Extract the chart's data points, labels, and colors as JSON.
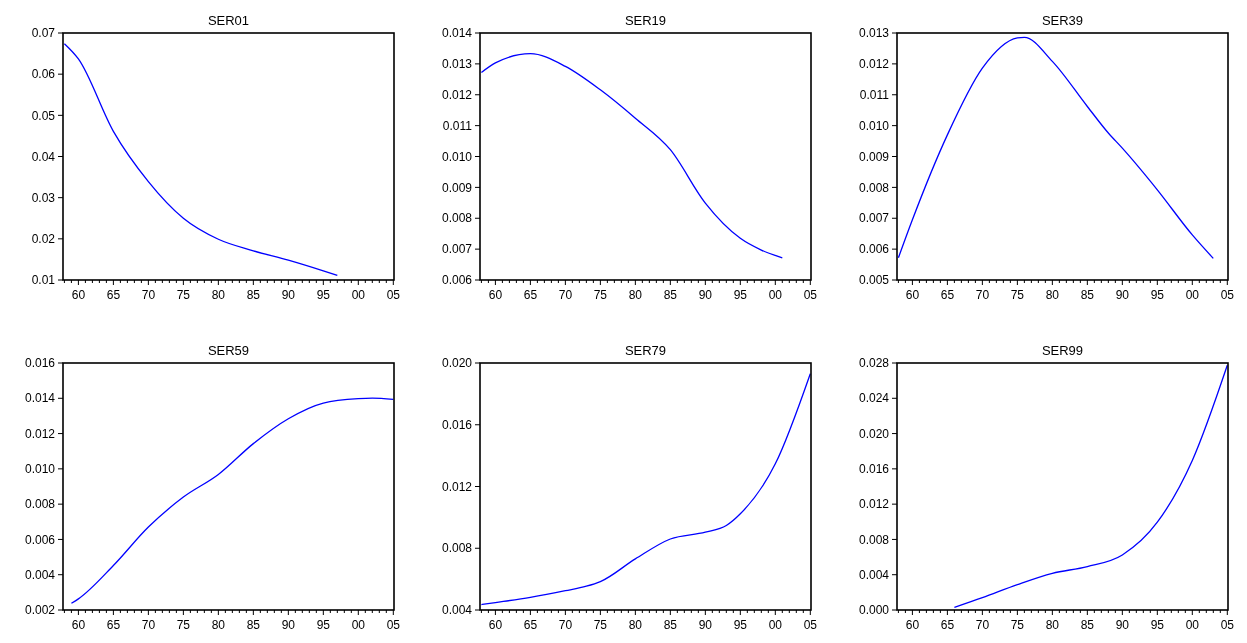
{
  "chart_data": [
    {
      "type": "line",
      "title": "SER01",
      "color": "#0000ff",
      "x": [
        1958,
        1960,
        1965,
        1970,
        1975,
        1980,
        1985,
        1990,
        1995,
        1997
      ],
      "values": [
        0.0674,
        0.0637,
        0.0461,
        0.0339,
        0.025,
        0.0199,
        0.0171,
        0.0148,
        0.0122,
        0.0111
      ],
      "xlim": [
        1957.8,
        2005.1
      ],
      "ylim": [
        0.01,
        0.07
      ],
      "yticks": [
        0.01,
        0.02,
        0.03,
        0.04,
        0.05,
        0.06,
        0.07
      ],
      "xticks": [
        {
          "value": 1958,
          "label": null
        },
        {
          "value": 1959,
          "label": null
        },
        {
          "value": 1960,
          "label": "60"
        },
        {
          "value": 1961,
          "label": null
        },
        {
          "value": 1962,
          "label": null
        },
        {
          "value": 1963,
          "label": null
        },
        {
          "value": 1964,
          "label": null
        },
        {
          "value": 1965,
          "label": "65"
        },
        {
          "value": 1966,
          "label": null
        },
        {
          "value": 1967,
          "label": null
        },
        {
          "value": 1968,
          "label": null
        },
        {
          "value": 1969,
          "label": null
        },
        {
          "value": 1970,
          "label": "70"
        },
        {
          "value": 1971,
          "label": null
        },
        {
          "value": 1972,
          "label": null
        },
        {
          "value": 1973,
          "label": null
        },
        {
          "value": 1974,
          "label": null
        },
        {
          "value": 1975,
          "label": "75"
        },
        {
          "value": 1976,
          "label": null
        },
        {
          "value": 1977,
          "label": null
        },
        {
          "value": 1978,
          "label": null
        },
        {
          "value": 1979,
          "label": null
        },
        {
          "value": 1980,
          "label": "80"
        },
        {
          "value": 1981,
          "label": null
        },
        {
          "value": 1982,
          "label": null
        },
        {
          "value": 1983,
          "label": null
        },
        {
          "value": 1984,
          "label": null
        },
        {
          "value": 1985,
          "label": "85"
        },
        {
          "value": 1986,
          "label": null
        },
        {
          "value": 1987,
          "label": null
        },
        {
          "value": 1988,
          "label": null
        },
        {
          "value": 1989,
          "label": null
        },
        {
          "value": 1990,
          "label": "90"
        },
        {
          "value": 1991,
          "label": null
        },
        {
          "value": 1992,
          "label": null
        },
        {
          "value": 1993,
          "label": null
        },
        {
          "value": 1994,
          "label": null
        },
        {
          "value": 1995,
          "label": "95"
        },
        {
          "value": 1996,
          "label": null
        },
        {
          "value": 1997,
          "label": null
        },
        {
          "value": 1998,
          "label": null
        },
        {
          "value": 1999,
          "label": null
        },
        {
          "value": 2000,
          "label": "00"
        },
        {
          "value": 2001,
          "label": null
        },
        {
          "value": 2002,
          "label": null
        },
        {
          "value": 2003,
          "label": null
        },
        {
          "value": 2004,
          "label": null
        },
        {
          "value": 2005,
          "label": "05"
        }
      ]
    },
    {
      "type": "line",
      "title": "SER19",
      "color": "#0000ff",
      "x": [
        1958,
        1960,
        1965,
        1970,
        1975,
        1980,
        1985,
        1990,
        1995,
        1998,
        2001
      ],
      "values": [
        0.01272,
        0.01303,
        0.01333,
        0.01292,
        0.01216,
        0.01124,
        0.01022,
        0.00849,
        0.00735,
        0.00697,
        0.00672
      ],
      "xlim": [
        1957.8,
        2005.1
      ],
      "ylim": [
        0.006,
        0.014
      ],
      "yticks": [
        {
          "value": 0.006,
          "label": "0.006"
        },
        {
          "value": 0.007,
          "label": "0.007"
        },
        {
          "value": 0.008,
          "label": "0.008"
        },
        {
          "value": 0.009,
          "label": "0.009"
        },
        {
          "value": 0.01,
          "label": "0.010"
        },
        {
          "value": 0.011,
          "label": "0.011"
        },
        {
          "value": 0.012,
          "label": "0.012"
        },
        {
          "value": 0.013,
          "label": "0.013"
        },
        {
          "value": 0.014,
          "label": "0.014"
        }
      ],
      "xticks": [
        {
          "value": 1958,
          "label": null
        },
        {
          "value": 1959,
          "label": null
        },
        {
          "value": 1960,
          "label": "60"
        },
        {
          "value": 1961,
          "label": null
        },
        {
          "value": 1962,
          "label": null
        },
        {
          "value": 1963,
          "label": null
        },
        {
          "value": 1964,
          "label": null
        },
        {
          "value": 1965,
          "label": "65"
        },
        {
          "value": 1966,
          "label": null
        },
        {
          "value": 1967,
          "label": null
        },
        {
          "value": 1968,
          "label": null
        },
        {
          "value": 1969,
          "label": null
        },
        {
          "value": 1970,
          "label": "70"
        },
        {
          "value": 1971,
          "label": null
        },
        {
          "value": 1972,
          "label": null
        },
        {
          "value": 1973,
          "label": null
        },
        {
          "value": 1974,
          "label": null
        },
        {
          "value": 1975,
          "label": "75"
        },
        {
          "value": 1976,
          "label": null
        },
        {
          "value": 1977,
          "label": null
        },
        {
          "value": 1978,
          "label": null
        },
        {
          "value": 1979,
          "label": null
        },
        {
          "value": 1980,
          "label": "80"
        },
        {
          "value": 1981,
          "label": null
        },
        {
          "value": 1982,
          "label": null
        },
        {
          "value": 1983,
          "label": null
        },
        {
          "value": 1984,
          "label": null
        },
        {
          "value": 1985,
          "label": "85"
        },
        {
          "value": 1986,
          "label": null
        },
        {
          "value": 1987,
          "label": null
        },
        {
          "value": 1988,
          "label": null
        },
        {
          "value": 1989,
          "label": null
        },
        {
          "value": 1990,
          "label": "90"
        },
        {
          "value": 1991,
          "label": null
        },
        {
          "value": 1992,
          "label": null
        },
        {
          "value": 1993,
          "label": null
        },
        {
          "value": 1994,
          "label": null
        },
        {
          "value": 1995,
          "label": "95"
        },
        {
          "value": 1996,
          "label": null
        },
        {
          "value": 1997,
          "label": null
        },
        {
          "value": 1998,
          "label": null
        },
        {
          "value": 1999,
          "label": null
        },
        {
          "value": 2000,
          "label": "00"
        },
        {
          "value": 2001,
          "label": null
        },
        {
          "value": 2002,
          "label": null
        },
        {
          "value": 2003,
          "label": null
        },
        {
          "value": 2004,
          "label": null
        },
        {
          "value": 2005,
          "label": "05"
        }
      ]
    },
    {
      "type": "line",
      "title": "SER39",
      "color": "#0000ff",
      "x": [
        1958,
        1960,
        1965,
        1970,
        1975,
        1976,
        1980,
        1985,
        1988,
        1990,
        1995,
        2000,
        2003
      ],
      "values": [
        0.00572,
        0.00695,
        0.0097,
        0.01186,
        0.01284,
        0.01286,
        0.01208,
        0.01062,
        0.00976,
        0.00927,
        0.00792,
        0.00646,
        0.0057
      ],
      "xlim": [
        1957.8,
        2005.1
      ],
      "ylim": [
        0.005,
        0.013
      ],
      "yticks": [
        {
          "value": 0.005,
          "label": "0.005"
        },
        {
          "value": 0.006,
          "label": "0.006"
        },
        {
          "value": 0.007,
          "label": "0.007"
        },
        {
          "value": 0.008,
          "label": "0.008"
        },
        {
          "value": 0.009,
          "label": "0.009"
        },
        {
          "value": 0.01,
          "label": "0.010"
        },
        {
          "value": 0.011,
          "label": "0.011"
        },
        {
          "value": 0.012,
          "label": "0.012"
        },
        {
          "value": 0.013,
          "label": "0.013"
        }
      ],
      "xticks": [
        {
          "value": 1958,
          "label": null
        },
        {
          "value": 1959,
          "label": null
        },
        {
          "value": 1960,
          "label": "60"
        },
        {
          "value": 1961,
          "label": null
        },
        {
          "value": 1962,
          "label": null
        },
        {
          "value": 1963,
          "label": null
        },
        {
          "value": 1964,
          "label": null
        },
        {
          "value": 1965,
          "label": "65"
        },
        {
          "value": 1966,
          "label": null
        },
        {
          "value": 1967,
          "label": null
        },
        {
          "value": 1968,
          "label": null
        },
        {
          "value": 1969,
          "label": null
        },
        {
          "value": 1970,
          "label": "70"
        },
        {
          "value": 1971,
          "label": null
        },
        {
          "value": 1972,
          "label": null
        },
        {
          "value": 1973,
          "label": null
        },
        {
          "value": 1974,
          "label": null
        },
        {
          "value": 1975,
          "label": "75"
        },
        {
          "value": 1976,
          "label": null
        },
        {
          "value": 1977,
          "label": null
        },
        {
          "value": 1978,
          "label": null
        },
        {
          "value": 1979,
          "label": null
        },
        {
          "value": 1980,
          "label": "80"
        },
        {
          "value": 1981,
          "label": null
        },
        {
          "value": 1982,
          "label": null
        },
        {
          "value": 1983,
          "label": null
        },
        {
          "value": 1984,
          "label": null
        },
        {
          "value": 1985,
          "label": "85"
        },
        {
          "value": 1986,
          "label": null
        },
        {
          "value": 1987,
          "label": null
        },
        {
          "value": 1988,
          "label": null
        },
        {
          "value": 1989,
          "label": null
        },
        {
          "value": 1990,
          "label": "90"
        },
        {
          "value": 1991,
          "label": null
        },
        {
          "value": 1992,
          "label": null
        },
        {
          "value": 1993,
          "label": null
        },
        {
          "value": 1994,
          "label": null
        },
        {
          "value": 1995,
          "label": "95"
        },
        {
          "value": 1996,
          "label": null
        },
        {
          "value": 1997,
          "label": null
        },
        {
          "value": 1998,
          "label": null
        },
        {
          "value": 1999,
          "label": null
        },
        {
          "value": 2000,
          "label": "00"
        },
        {
          "value": 2001,
          "label": null
        },
        {
          "value": 2002,
          "label": null
        },
        {
          "value": 2003,
          "label": null
        },
        {
          "value": 2004,
          "label": null
        },
        {
          "value": 2005,
          "label": "05"
        }
      ]
    },
    {
      "type": "line",
      "title": "SER59",
      "color": "#0000ff",
      "x": [
        1959,
        1960,
        1965,
        1970,
        1975,
        1980,
        1985,
        1990,
        1995,
        2000,
        2002,
        2005
      ],
      "values": [
        0.00238,
        0.00263,
        0.00452,
        0.0067,
        0.0084,
        0.00968,
        0.01143,
        0.01284,
        0.01373,
        0.01398,
        0.01401,
        0.01394
      ],
      "xlim": [
        1957.8,
        2005.1
      ],
      "ylim": [
        0.002,
        0.016
      ],
      "yticks": [
        {
          "value": 0.002,
          "label": "0.002"
        },
        {
          "value": 0.004,
          "label": "0.004"
        },
        {
          "value": 0.006,
          "label": "0.006"
        },
        {
          "value": 0.008,
          "label": "0.008"
        },
        {
          "value": 0.01,
          "label": "0.010"
        },
        {
          "value": 0.012,
          "label": "0.012"
        },
        {
          "value": 0.014,
          "label": "0.014"
        },
        {
          "value": 0.016,
          "label": "0.016"
        }
      ],
      "xticks": [
        {
          "value": 1958,
          "label": null
        },
        {
          "value": 1959,
          "label": null
        },
        {
          "value": 1960,
          "label": "60"
        },
        {
          "value": 1961,
          "label": null
        },
        {
          "value": 1962,
          "label": null
        },
        {
          "value": 1963,
          "label": null
        },
        {
          "value": 1964,
          "label": null
        },
        {
          "value": 1965,
          "label": "65"
        },
        {
          "value": 1966,
          "label": null
        },
        {
          "value": 1967,
          "label": null
        },
        {
          "value": 1968,
          "label": null
        },
        {
          "value": 1969,
          "label": null
        },
        {
          "value": 1970,
          "label": "70"
        },
        {
          "value": 1971,
          "label": null
        },
        {
          "value": 1972,
          "label": null
        },
        {
          "value": 1973,
          "label": null
        },
        {
          "value": 1974,
          "label": null
        },
        {
          "value": 1975,
          "label": "75"
        },
        {
          "value": 1976,
          "label": null
        },
        {
          "value": 1977,
          "label": null
        },
        {
          "value": 1978,
          "label": null
        },
        {
          "value": 1979,
          "label": null
        },
        {
          "value": 1980,
          "label": "80"
        },
        {
          "value": 1981,
          "label": null
        },
        {
          "value": 1982,
          "label": null
        },
        {
          "value": 1983,
          "label": null
        },
        {
          "value": 1984,
          "label": null
        },
        {
          "value": 1985,
          "label": "85"
        },
        {
          "value": 1986,
          "label": null
        },
        {
          "value": 1987,
          "label": null
        },
        {
          "value": 1988,
          "label": null
        },
        {
          "value": 1989,
          "label": null
        },
        {
          "value": 1990,
          "label": "90"
        },
        {
          "value": 1991,
          "label": null
        },
        {
          "value": 1992,
          "label": null
        },
        {
          "value": 1993,
          "label": null
        },
        {
          "value": 1994,
          "label": null
        },
        {
          "value": 1995,
          "label": "95"
        },
        {
          "value": 1996,
          "label": null
        },
        {
          "value": 1997,
          "label": null
        },
        {
          "value": 1998,
          "label": null
        },
        {
          "value": 1999,
          "label": null
        },
        {
          "value": 2000,
          "label": "00"
        },
        {
          "value": 2001,
          "label": null
        },
        {
          "value": 2002,
          "label": null
        },
        {
          "value": 2003,
          "label": null
        },
        {
          "value": 2004,
          "label": null
        },
        {
          "value": 2005,
          "label": "05"
        }
      ]
    },
    {
      "type": "line",
      "title": "SER79",
      "color": "#0000ff",
      "x": [
        1958,
        1960,
        1965,
        1970,
        1973,
        1975,
        1980,
        1985,
        1990,
        1993,
        1995,
        2000,
        2005
      ],
      "values": [
        0.00435,
        0.00448,
        0.00482,
        0.00525,
        0.00554,
        0.00584,
        0.00731,
        0.0086,
        0.00904,
        0.00947,
        0.01023,
        0.01347,
        0.01931
      ],
      "xlim": [
        1957.8,
        2005.1
      ],
      "ylim": [
        0.004,
        0.02
      ],
      "yticks": [
        {
          "value": 0.004,
          "label": "0.004"
        },
        {
          "value": 0.008,
          "label": "0.008"
        },
        {
          "value": 0.012,
          "label": "0.012"
        },
        {
          "value": 0.016,
          "label": "0.016"
        },
        {
          "value": 0.02,
          "label": "0.020"
        }
      ],
      "xticks": [
        {
          "value": 1958,
          "label": null
        },
        {
          "value": 1959,
          "label": null
        },
        {
          "value": 1960,
          "label": "60"
        },
        {
          "value": 1961,
          "label": null
        },
        {
          "value": 1962,
          "label": null
        },
        {
          "value": 1963,
          "label": null
        },
        {
          "value": 1964,
          "label": null
        },
        {
          "value": 1965,
          "label": "65"
        },
        {
          "value": 1966,
          "label": null
        },
        {
          "value": 1967,
          "label": null
        },
        {
          "value": 1968,
          "label": null
        },
        {
          "value": 1969,
          "label": null
        },
        {
          "value": 1970,
          "label": "70"
        },
        {
          "value": 1971,
          "label": null
        },
        {
          "value": 1972,
          "label": null
        },
        {
          "value": 1973,
          "label": null
        },
        {
          "value": 1974,
          "label": null
        },
        {
          "value": 1975,
          "label": "75"
        },
        {
          "value": 1976,
          "label": null
        },
        {
          "value": 1977,
          "label": null
        },
        {
          "value": 1978,
          "label": null
        },
        {
          "value": 1979,
          "label": null
        },
        {
          "value": 1980,
          "label": "80"
        },
        {
          "value": 1981,
          "label": null
        },
        {
          "value": 1982,
          "label": null
        },
        {
          "value": 1983,
          "label": null
        },
        {
          "value": 1984,
          "label": null
        },
        {
          "value": 1985,
          "label": "85"
        },
        {
          "value": 1986,
          "label": null
        },
        {
          "value": 1987,
          "label": null
        },
        {
          "value": 1988,
          "label": null
        },
        {
          "value": 1989,
          "label": null
        },
        {
          "value": 1990,
          "label": "90"
        },
        {
          "value": 1991,
          "label": null
        },
        {
          "value": 1992,
          "label": null
        },
        {
          "value": 1993,
          "label": null
        },
        {
          "value": 1994,
          "label": null
        },
        {
          "value": 1995,
          "label": "95"
        },
        {
          "value": 1996,
          "label": null
        },
        {
          "value": 1997,
          "label": null
        },
        {
          "value": 1998,
          "label": null
        },
        {
          "value": 1999,
          "label": null
        },
        {
          "value": 2000,
          "label": "00"
        },
        {
          "value": 2001,
          "label": null
        },
        {
          "value": 2002,
          "label": null
        },
        {
          "value": 2003,
          "label": null
        },
        {
          "value": 2004,
          "label": null
        },
        {
          "value": 2005,
          "label": "05"
        }
      ]
    },
    {
      "type": "line",
      "title": "SER99",
      "color": "#0000ff",
      "x": [
        1966,
        1970,
        1975,
        1980,
        1985,
        1990,
        1995,
        2000,
        2005
      ],
      "values": [
        0.0003,
        0.0014,
        0.00288,
        0.00416,
        0.00492,
        0.00624,
        0.00995,
        0.01695,
        0.02774
      ],
      "xlim": [
        1957.8,
        2005.1
      ],
      "ylim": [
        0.0,
        0.028
      ],
      "yticks": [
        {
          "value": 0,
          "label": "0.000"
        },
        {
          "value": 0.004,
          "label": "0.004"
        },
        {
          "value": 0.008,
          "label": "0.008"
        },
        {
          "value": 0.012,
          "label": "0.012"
        },
        {
          "value": 0.016,
          "label": "0.016"
        },
        {
          "value": 0.02,
          "label": "0.020"
        },
        {
          "value": 0.024,
          "label": "0.024"
        },
        {
          "value": 0.028,
          "label": "0.028"
        }
      ],
      "xticks": [
        {
          "value": 1958,
          "label": null
        },
        {
          "value": 1959,
          "label": null
        },
        {
          "value": 1960,
          "label": "60"
        },
        {
          "value": 1961,
          "label": null
        },
        {
          "value": 1962,
          "label": null
        },
        {
          "value": 1963,
          "label": null
        },
        {
          "value": 1964,
          "label": null
        },
        {
          "value": 1965,
          "label": "65"
        },
        {
          "value": 1966,
          "label": null
        },
        {
          "value": 1967,
          "label": null
        },
        {
          "value": 1968,
          "label": null
        },
        {
          "value": 1969,
          "label": null
        },
        {
          "value": 1970,
          "label": "70"
        },
        {
          "value": 1971,
          "label": null
        },
        {
          "value": 1972,
          "label": null
        },
        {
          "value": 1973,
          "label": null
        },
        {
          "value": 1974,
          "label": null
        },
        {
          "value": 1975,
          "label": "75"
        },
        {
          "value": 1976,
          "label": null
        },
        {
          "value": 1977,
          "label": null
        },
        {
          "value": 1978,
          "label": null
        },
        {
          "value": 1979,
          "label": null
        },
        {
          "value": 1980,
          "label": "80"
        },
        {
          "value": 1981,
          "label": null
        },
        {
          "value": 1982,
          "label": null
        },
        {
          "value": 1983,
          "label": null
        },
        {
          "value": 1984,
          "label": null
        },
        {
          "value": 1985,
          "label": "85"
        },
        {
          "value": 1986,
          "label": null
        },
        {
          "value": 1987,
          "label": null
        },
        {
          "value": 1988,
          "label": null
        },
        {
          "value": 1989,
          "label": null
        },
        {
          "value": 1990,
          "label": "90"
        },
        {
          "value": 1991,
          "label": null
        },
        {
          "value": 1992,
          "label": null
        },
        {
          "value": 1993,
          "label": null
        },
        {
          "value": 1994,
          "label": null
        },
        {
          "value": 1995,
          "label": "95"
        },
        {
          "value": 1996,
          "label": null
        },
        {
          "value": 1997,
          "label": null
        },
        {
          "value": 1998,
          "label": null
        },
        {
          "value": 1999,
          "label": null
        },
        {
          "value": 2000,
          "label": "00"
        },
        {
          "value": 2001,
          "label": null
        },
        {
          "value": 2002,
          "label": null
        },
        {
          "value": 2003,
          "label": null
        },
        {
          "value": 2004,
          "label": null
        },
        {
          "value": 2005,
          "label": "05"
        }
      ]
    }
  ]
}
